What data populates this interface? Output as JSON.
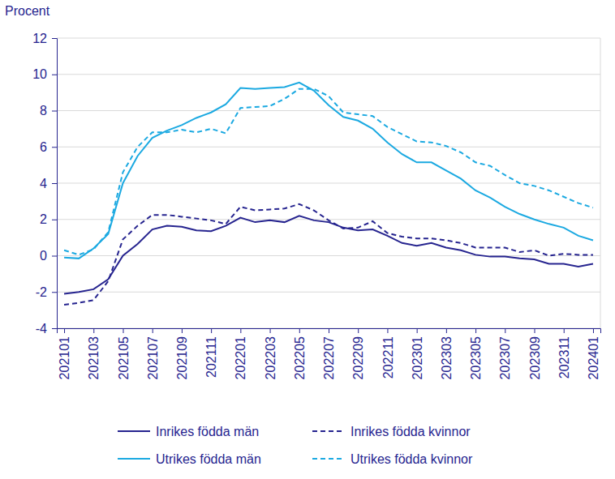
{
  "chart_data": {
    "type": "line",
    "y_label": "Procent",
    "categories": [
      "202101",
      null,
      "202103",
      null,
      "202105",
      null,
      "202107",
      null,
      "202109",
      null,
      "202111",
      null,
      "202201",
      null,
      "202203",
      null,
      "202205",
      null,
      "202207",
      null,
      "202209",
      null,
      "202211",
      null,
      "202301",
      null,
      "202303",
      null,
      "202305",
      null,
      "202307",
      null,
      "202309",
      null,
      "202311",
      null,
      "202401"
    ],
    "ylim": [
      -4,
      12
    ],
    "yticks": [
      -4,
      -2,
      0,
      2,
      4,
      6,
      8,
      10,
      12
    ],
    "grid": true,
    "legend": "bottom",
    "series": [
      {
        "name": "Inrikes födda män",
        "color": "#26248f",
        "line_style": "solid",
        "values": [
          -2.1,
          -2.0,
          -1.85,
          -1.3,
          0.0,
          0.65,
          1.45,
          1.65,
          1.6,
          1.4,
          1.35,
          1.65,
          2.1,
          1.85,
          1.95,
          1.85,
          2.2,
          1.95,
          1.85,
          1.55,
          1.4,
          1.45,
          1.1,
          0.7,
          0.55,
          0.7,
          0.45,
          0.3,
          0.05,
          -0.05,
          -0.05,
          -0.15,
          -0.2,
          -0.45,
          -0.45,
          -0.6,
          -0.45
        ]
      },
      {
        "name": "Inrikes födda kvinnor",
        "color": "#26248f",
        "line_style": "dashed",
        "values": [
          -2.7,
          -2.6,
          -2.45,
          -1.4,
          0.9,
          1.65,
          2.25,
          2.25,
          2.15,
          2.05,
          1.95,
          1.75,
          2.7,
          2.5,
          2.55,
          2.6,
          2.85,
          2.5,
          1.95,
          1.5,
          1.55,
          1.9,
          1.25,
          1.05,
          0.95,
          0.95,
          0.85,
          0.7,
          0.45,
          0.45,
          0.45,
          0.2,
          0.3,
          0.0,
          0.1,
          0.05,
          0.05
        ]
      },
      {
        "name": "Utrikes födda män",
        "color": "#1ba9e1",
        "line_style": "solid",
        "values": [
          -0.1,
          -0.15,
          0.4,
          1.2,
          4.0,
          5.5,
          6.5,
          6.9,
          7.2,
          7.6,
          7.9,
          8.35,
          9.25,
          9.2,
          9.25,
          9.3,
          9.55,
          9.1,
          8.3,
          7.65,
          7.45,
          7.0,
          6.25,
          5.6,
          5.15,
          5.15,
          4.7,
          4.25,
          3.6,
          3.2,
          2.7,
          2.3,
          2.0,
          1.75,
          1.55,
          1.1,
          0.85
        ]
      },
      {
        "name": "Utrikes födda kvinnor",
        "color": "#1ba9e1",
        "line_style": "dashed",
        "values": [
          0.3,
          0.05,
          0.35,
          1.3,
          4.6,
          6.0,
          6.8,
          6.8,
          6.95,
          6.8,
          7.0,
          6.75,
          8.15,
          8.2,
          8.25,
          8.65,
          9.2,
          9.2,
          8.8,
          7.9,
          7.8,
          7.7,
          7.1,
          6.7,
          6.3,
          6.25,
          6.05,
          5.7,
          5.15,
          4.95,
          4.45,
          4.0,
          3.85,
          3.6,
          3.25,
          2.9,
          2.65
        ]
      }
    ]
  }
}
